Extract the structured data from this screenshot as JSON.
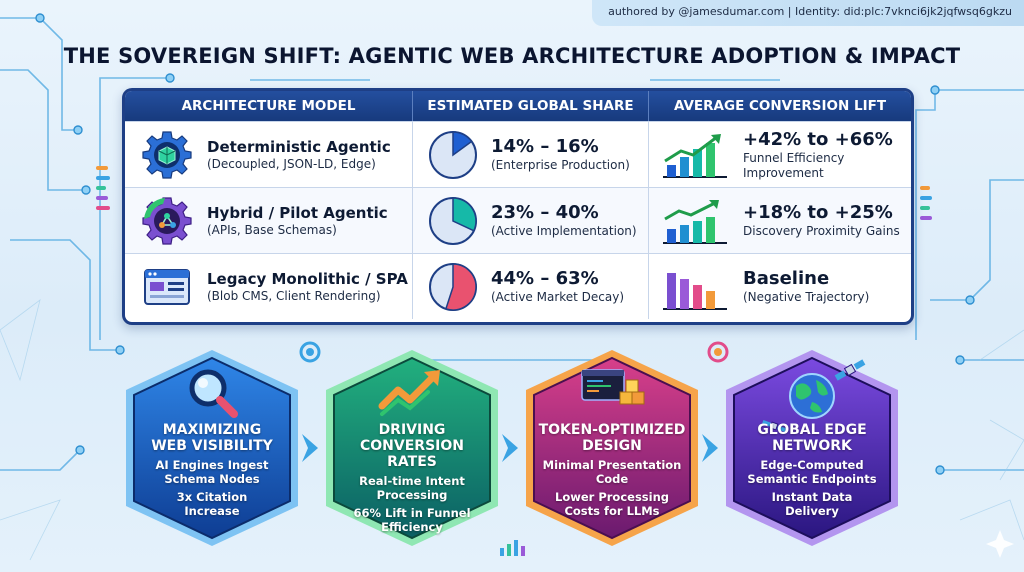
{
  "header": {
    "author_line": "authored by @jamesdumar.com | Identity: did:plc:7vknci6jk2jqfwsq6gkzu",
    "title": "THE SOVEREIGN SHIFT: AGENTIC WEB ARCHITECTURE ADOPTION & IMPACT"
  },
  "table": {
    "columns": [
      "ARCHITECTURE MODEL",
      "ESTIMATED GLOBAL SHARE",
      "AVERAGE CONVERSION LIFT"
    ],
    "rows": [
      {
        "model": "Deterministic Agentic",
        "model_sub": "(Decoupled, JSON-LD, Edge)",
        "model_icon": "gear-cube-icon",
        "share": "14% – 16%",
        "share_sub": "(Enterprise Production)",
        "share_fraction": 0.15,
        "share_color": "#1f5fd1",
        "lift": "+42% to +66%",
        "lift_sub1": "Funnel Efficiency",
        "lift_sub2": "Improvement",
        "trend_icon": "growth-chart-icon"
      },
      {
        "model": "Hybrid / Pilot Agentic",
        "model_sub": "(APIs, Base Schemas)",
        "model_icon": "gear-network-icon",
        "share": "23% – 40%",
        "share_sub": "(Active Implementation)",
        "share_fraction": 0.32,
        "share_color": "#16b9a8",
        "lift": "+18% to +25%",
        "lift_sub1": "Discovery Proximity Gains",
        "lift_sub2": "",
        "trend_icon": "growth-chart-icon"
      },
      {
        "model": "Legacy Monolithic / SPA",
        "model_sub": "(Blob CMS, Client Rendering)",
        "model_icon": "browser-window-icon",
        "share": "44% – 63%",
        "share_sub": "(Active Market Decay)",
        "share_fraction": 0.55,
        "share_color": "#e9526f",
        "lift": "Baseline",
        "lift_sub1": "(Negative Trajectory)",
        "lift_sub2": "",
        "trend_icon": "declining-chart-icon"
      }
    ]
  },
  "pillars": [
    {
      "title1": "MAXIMIZING",
      "title2": "WEB VISIBILITY",
      "lines1": [
        "AI Engines Ingest",
        "Schema Nodes"
      ],
      "lines2": [
        "3x Citation",
        "Increase"
      ],
      "icon": "magnifier-icon",
      "color": "#1b5fc4"
    },
    {
      "title1": "DRIVING",
      "title2": "CONVERSION RATES",
      "lines1": [
        "Real-time Intent",
        "Processing"
      ],
      "lines2": [
        "66% Lift in Funnel",
        "Efficiency"
      ],
      "icon": "trend-arrow-icon",
      "color": "#11956c"
    },
    {
      "title1": "TOKEN-OPTIMIZED",
      "title2": "DESIGN",
      "lines1": [
        "Minimal Presentation",
        "Code"
      ],
      "lines2": [
        "Lower Processing",
        "Costs for LLMs"
      ],
      "icon": "code-blocks-icon",
      "color": "#b4307e"
    },
    {
      "title1": "GLOBAL EDGE",
      "title2": "NETWORK",
      "lines1": [
        "Edge-Computed",
        "Semantic Endpoints"
      ],
      "lines2": [
        "Instant Data",
        "Delivery"
      ],
      "icon": "globe-satellite-icon",
      "color": "#5a2fb2"
    }
  ]
}
